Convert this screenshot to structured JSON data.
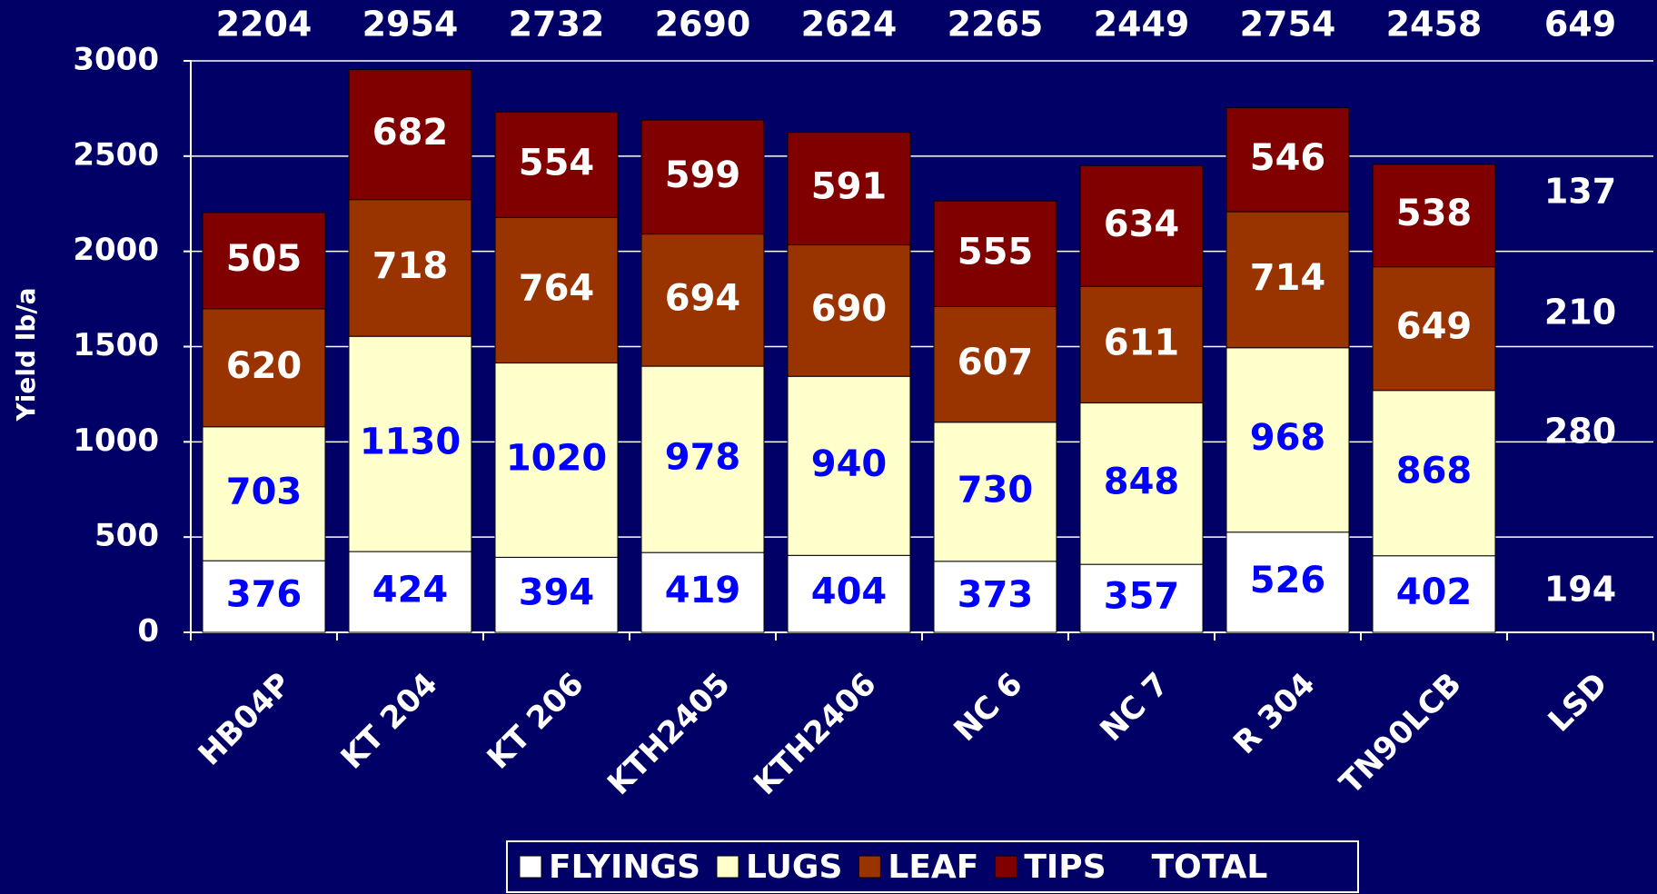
{
  "chart_data": {
    "type": "stacked-bar",
    "y_label": "Yield lb/a",
    "categories": [
      "HB04P",
      "KT 204",
      "KT 206",
      "KTH2405",
      "KTH2406",
      "NC 6",
      "NC 7",
      "R 304",
      "TN90LCB"
    ],
    "series": [
      {
        "name": "FLYINGS",
        "color": "#ffffff",
        "label_color": "#0000ff",
        "values": [
          376,
          424,
          394,
          419,
          404,
          373,
          357,
          526,
          402
        ]
      },
      {
        "name": "LUGS",
        "color": "#ffffcc",
        "label_color": "#0000ff",
        "values": [
          703,
          1130,
          1020,
          978,
          940,
          730,
          848,
          968,
          868
        ]
      },
      {
        "name": "LEAF",
        "color": "#993300",
        "label_color": "#ffffff",
        "values": [
          620,
          718,
          764,
          694,
          690,
          607,
          611,
          714,
          649
        ]
      },
      {
        "name": "TIPS",
        "color": "#800000",
        "label_color": "#ffffff",
        "values": [
          505,
          682,
          554,
          599,
          591,
          555,
          634,
          546,
          538
        ]
      }
    ],
    "total": {
      "name": "TOTAL",
      "values": [
        2204,
        2954,
        2732,
        2690,
        2624,
        2265,
        2449,
        2754,
        2458
      ]
    },
    "lsd": {
      "label": "LSD",
      "values": [
        194,
        280,
        210,
        137
      ],
      "total": 649
    },
    "ylim": [
      0,
      3000
    ],
    "yticks": [
      0,
      500,
      1000,
      1500,
      2000,
      2500,
      3000
    ],
    "grid": true
  }
}
